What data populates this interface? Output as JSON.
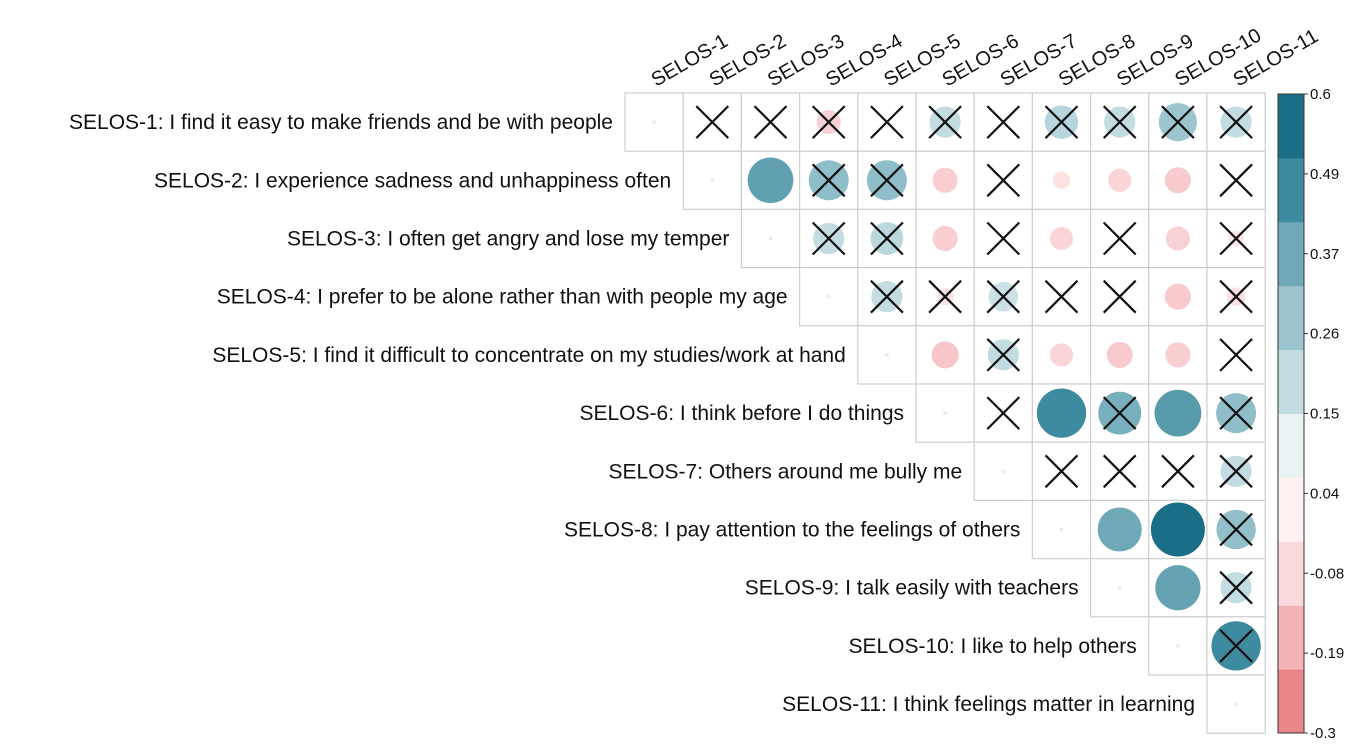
{
  "chart_data": {
    "type": "heatmap",
    "row_labels": [
      "SELOS-1: I find it easy to make friends and be with people",
      "SELOS-2: I experience sadness and unhappiness often",
      "SELOS-3: I often get angry and lose my temper",
      "SELOS-4: I prefer to be alone rather than with people my age",
      "SELOS-5: I find it difficult to concentrate on my studies/work at hand",
      "SELOS-6: I think before I do things",
      "SELOS-7: Others around me bully me",
      "SELOS-8: I pay attention to the feelings of others",
      "SELOS-9: I talk easily with teachers",
      "SELOS-10: I like to help others",
      "SELOS-11: I think feelings matter in learning"
    ],
    "col_labels": [
      "SELOS-1",
      "SELOS-2",
      "SELOS-3",
      "SELOS-4",
      "SELOS-5",
      "SELOS-6",
      "SELOS-7",
      "SELOS-8",
      "SELOS-9",
      "SELOS-10",
      "SELOS-11"
    ],
    "colorbar": {
      "ticks": [
        "0.6",
        "0.49",
        "0.37",
        "0.26",
        "0.15",
        "0.04",
        "-0.08",
        "-0.19",
        "-0.3"
      ],
      "min": -0.3,
      "max": 0.6,
      "colors": [
        "#E8868A",
        "#F4B3B7",
        "#F9D9DB",
        "#FFF1F1",
        "#EAF3F4",
        "#C3DCE2",
        "#9CC5CF",
        "#6FA9B8",
        "#3E8A9E",
        "#1A6F87"
      ]
    },
    "cells": [
      {
        "row": 1,
        "col": 2,
        "value": 0.0,
        "crossed": true
      },
      {
        "row": 1,
        "col": 3,
        "value": 0.0,
        "crossed": true
      },
      {
        "row": 1,
        "col": 4,
        "value": -0.12,
        "crossed": true
      },
      {
        "row": 1,
        "col": 5,
        "value": 0.0,
        "crossed": true
      },
      {
        "row": 1,
        "col": 6,
        "value": 0.2,
        "crossed": true
      },
      {
        "row": 1,
        "col": 7,
        "value": 0.0,
        "crossed": true
      },
      {
        "row": 1,
        "col": 8,
        "value": 0.23,
        "crossed": true
      },
      {
        "row": 1,
        "col": 9,
        "value": 0.2,
        "crossed": true
      },
      {
        "row": 1,
        "col": 10,
        "value": 0.3,
        "crossed": true
      },
      {
        "row": 1,
        "col": 11,
        "value": 0.2,
        "crossed": true
      },
      {
        "row": 2,
        "col": 3,
        "value": 0.43,
        "crossed": false
      },
      {
        "row": 2,
        "col": 4,
        "value": 0.33,
        "crossed": true
      },
      {
        "row": 2,
        "col": 5,
        "value": 0.33,
        "crossed": true
      },
      {
        "row": 2,
        "col": 6,
        "value": -0.13,
        "crossed": false
      },
      {
        "row": 2,
        "col": 7,
        "value": 0.0,
        "crossed": true
      },
      {
        "row": 2,
        "col": 8,
        "value": -0.06,
        "crossed": false
      },
      {
        "row": 2,
        "col": 9,
        "value": -0.11,
        "crossed": false
      },
      {
        "row": 2,
        "col": 10,
        "value": -0.14,
        "crossed": false
      },
      {
        "row": 2,
        "col": 11,
        "value": 0.0,
        "crossed": true
      },
      {
        "row": 3,
        "col": 4,
        "value": 0.2,
        "crossed": true
      },
      {
        "row": 3,
        "col": 5,
        "value": 0.22,
        "crossed": true
      },
      {
        "row": 3,
        "col": 6,
        "value": -0.13,
        "crossed": false
      },
      {
        "row": 3,
        "col": 7,
        "value": 0.0,
        "crossed": true
      },
      {
        "row": 3,
        "col": 8,
        "value": -0.11,
        "crossed": false
      },
      {
        "row": 3,
        "col": 9,
        "value": 0.0,
        "crossed": true
      },
      {
        "row": 3,
        "col": 10,
        "value": -0.12,
        "crossed": false
      },
      {
        "row": 3,
        "col": 11,
        "value": -0.05,
        "crossed": true
      },
      {
        "row": 4,
        "col": 5,
        "value": 0.2,
        "crossed": true
      },
      {
        "row": 4,
        "col": 6,
        "value": -0.06,
        "crossed": true
      },
      {
        "row": 4,
        "col": 7,
        "value": 0.18,
        "crossed": true
      },
      {
        "row": 4,
        "col": 8,
        "value": 0.0,
        "crossed": true
      },
      {
        "row": 4,
        "col": 9,
        "value": 0.0,
        "crossed": true
      },
      {
        "row": 4,
        "col": 10,
        "value": -0.14,
        "crossed": false
      },
      {
        "row": 4,
        "col": 11,
        "value": -0.07,
        "crossed": true
      },
      {
        "row": 5,
        "col": 6,
        "value": -0.15,
        "crossed": false
      },
      {
        "row": 5,
        "col": 7,
        "value": 0.2,
        "crossed": true
      },
      {
        "row": 5,
        "col": 8,
        "value": -0.11,
        "crossed": false
      },
      {
        "row": 5,
        "col": 9,
        "value": -0.14,
        "crossed": false
      },
      {
        "row": 5,
        "col": 10,
        "value": -0.13,
        "crossed": false
      },
      {
        "row": 5,
        "col": 11,
        "value": 0.0,
        "crossed": true
      },
      {
        "row": 6,
        "col": 7,
        "value": 0.0,
        "crossed": true
      },
      {
        "row": 6,
        "col": 8,
        "value": 0.5,
        "crossed": false
      },
      {
        "row": 6,
        "col": 9,
        "value": 0.38,
        "crossed": true
      },
      {
        "row": 6,
        "col": 10,
        "value": 0.45,
        "crossed": false
      },
      {
        "row": 6,
        "col": 11,
        "value": 0.33,
        "crossed": true
      },
      {
        "row": 7,
        "col": 8,
        "value": 0.0,
        "crossed": true
      },
      {
        "row": 7,
        "col": 9,
        "value": 0.0,
        "crossed": true
      },
      {
        "row": 7,
        "col": 10,
        "value": 0.0,
        "crossed": true
      },
      {
        "row": 7,
        "col": 11,
        "value": 0.2,
        "crossed": true
      },
      {
        "row": 8,
        "col": 9,
        "value": 0.4,
        "crossed": false
      },
      {
        "row": 8,
        "col": 10,
        "value": 0.6,
        "crossed": false
      },
      {
        "row": 8,
        "col": 11,
        "value": 0.32,
        "crossed": true
      },
      {
        "row": 9,
        "col": 10,
        "value": 0.42,
        "crossed": false
      },
      {
        "row": 9,
        "col": 11,
        "value": 0.2,
        "crossed": true
      },
      {
        "row": 10,
        "col": 11,
        "value": 0.5,
        "crossed": true
      }
    ]
  }
}
